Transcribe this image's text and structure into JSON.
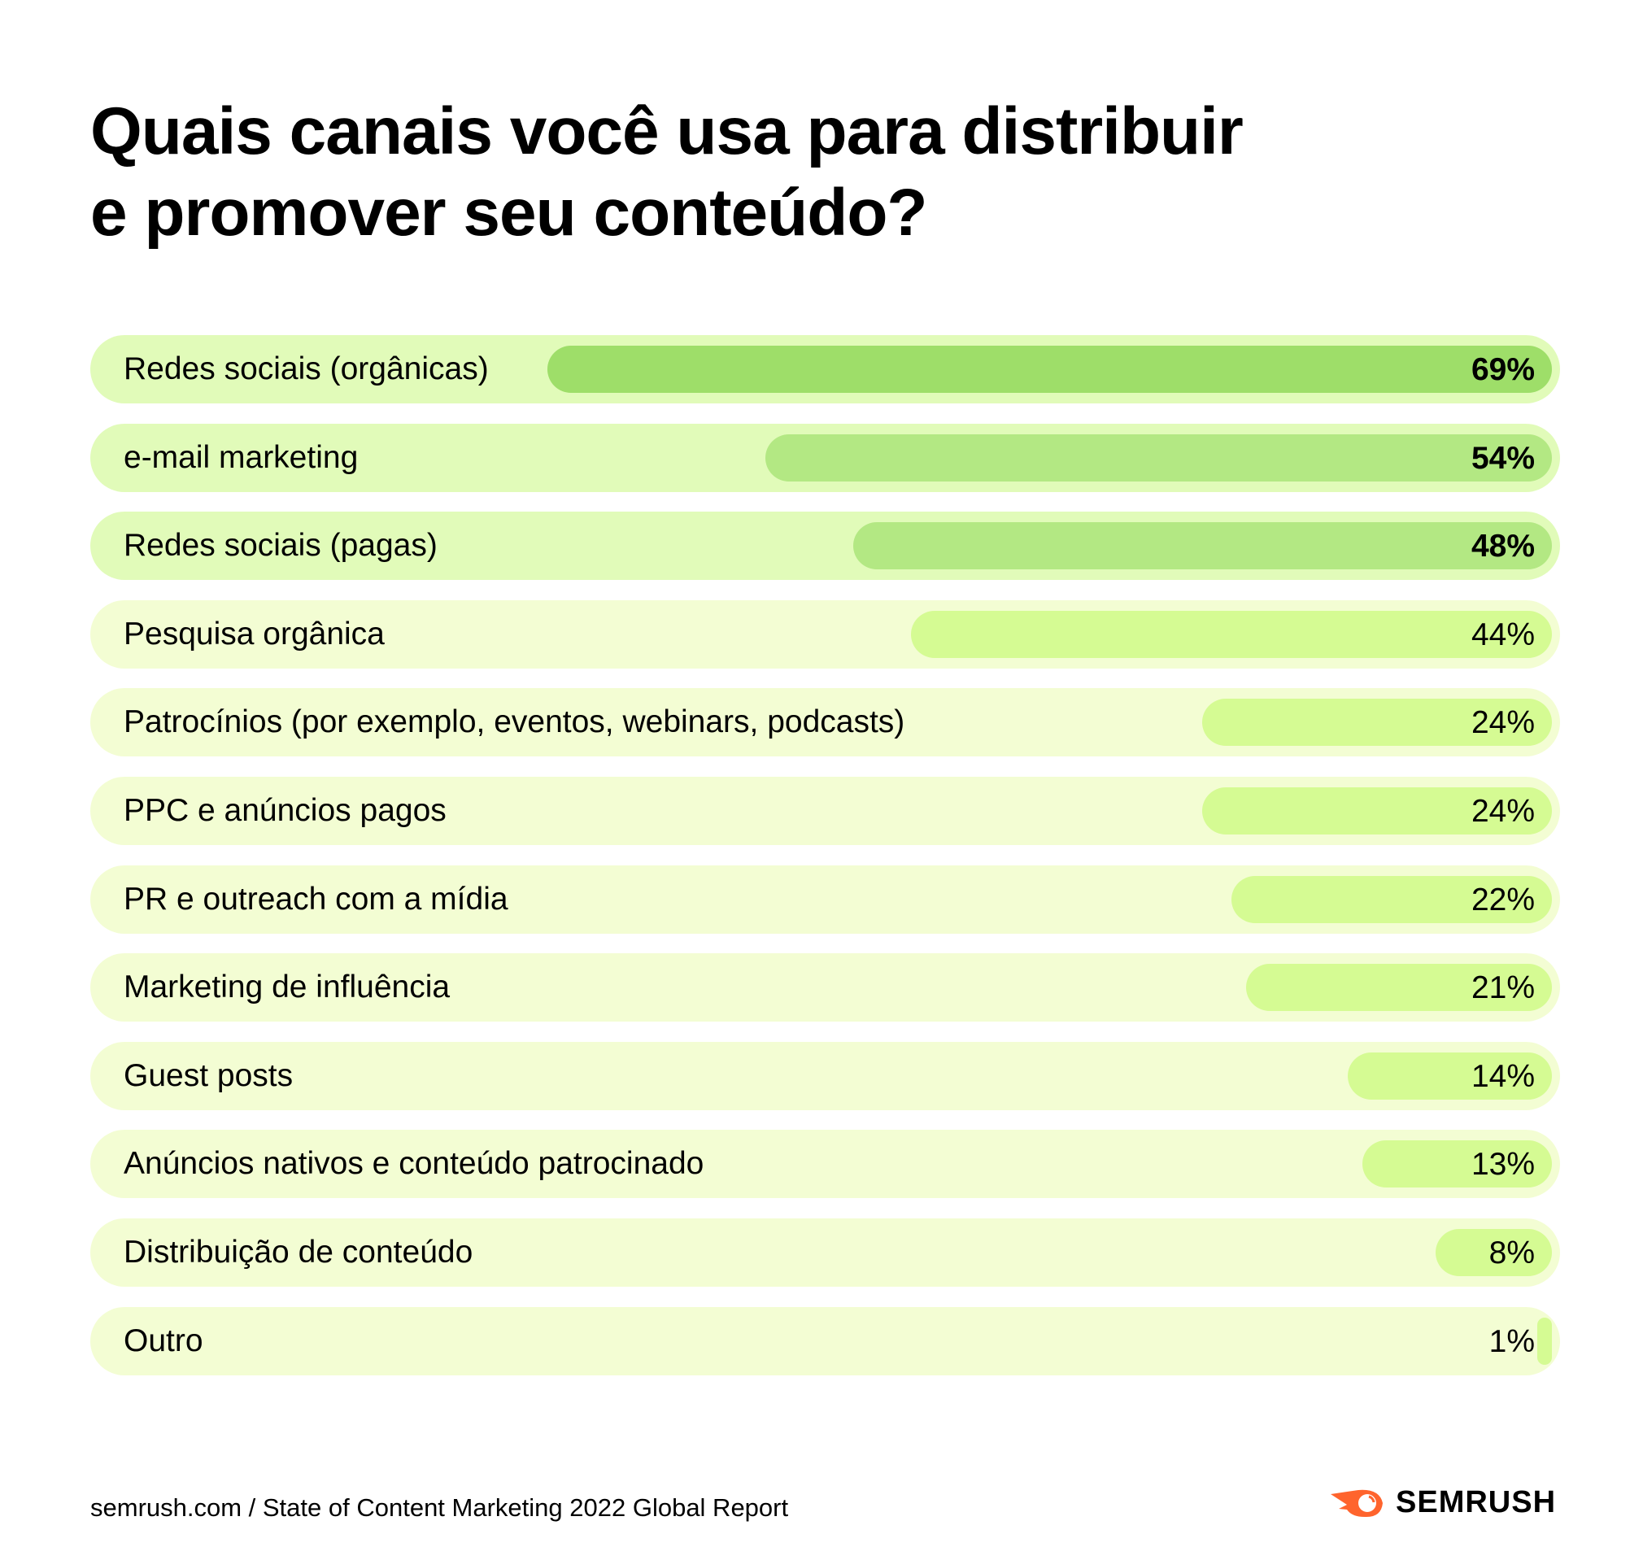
{
  "chart_data": {
    "type": "bar",
    "orientation": "horizontal",
    "title": "Quais canais você usa para distribuir e promover seu conteúdo?",
    "title_lines": [
      "Quais canais você usa para distribuir",
      "e promover seu conteúdo?"
    ],
    "categories": [
      "Redes sociais (orgânicas)",
      "e-mail marketing",
      "Redes sociais (pagas)",
      "Pesquisa orgânica",
      "Patrocínios (por exemplo, eventos, webinars, podcasts)",
      "PPC e anúncios pagos",
      "PR e outreach com a mídia",
      "Marketing de influência",
      "Guest posts",
      "Anúncios nativos e conteúdo patrocinado",
      "Distribuição de conteúdo",
      "Outro"
    ],
    "values": [
      69,
      54,
      48,
      44,
      24,
      24,
      22,
      21,
      14,
      13,
      8,
      1
    ],
    "data_labels": [
      "69%",
      "54%",
      "48%",
      "44%",
      "24%",
      "24%",
      "22%",
      "21%",
      "14%",
      "13%",
      "8%",
      "1%"
    ],
    "unit": "%",
    "xlim": [
      0,
      100
    ],
    "grid": false,
    "legend": "none",
    "colors": {
      "track_top": "#e1fbb9",
      "track_rest": "#f3fdd3",
      "bar_1": "#9ede69",
      "bar_2_3": "#b3e883",
      "bar_rest": "#d5fb93"
    }
  },
  "footer": {
    "source": "semrush.com / State of Content Marketing 2022 Global Report"
  },
  "logo": {
    "text": "SEMRUSH",
    "color": "#ff642d"
  }
}
